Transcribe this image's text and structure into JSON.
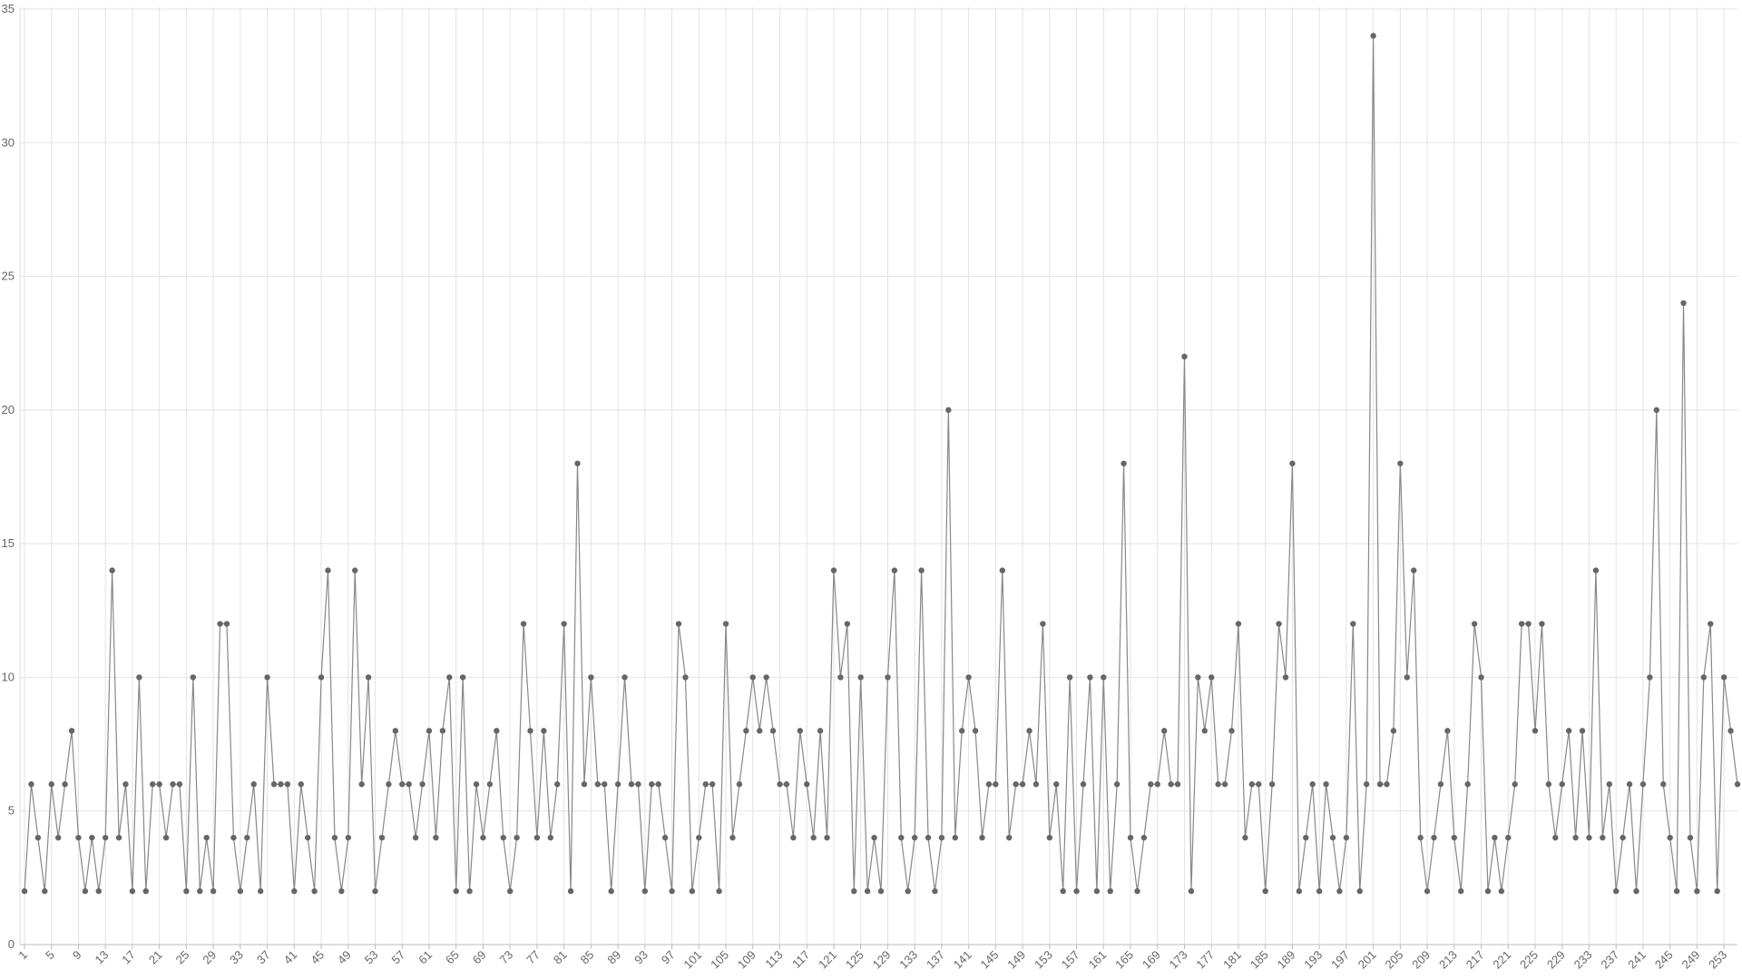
{
  "chart_data": {
    "type": "line",
    "x": [
      1,
      2,
      3,
      4,
      5,
      6,
      7,
      8,
      9,
      10,
      11,
      12,
      13,
      14,
      15,
      16,
      17,
      18,
      19,
      20,
      21,
      22,
      23,
      24,
      25,
      26,
      27,
      28,
      29,
      30,
      31,
      32,
      33,
      34,
      35,
      36,
      37,
      38,
      39,
      40,
      41,
      42,
      43,
      44,
      45,
      46,
      47,
      48,
      49,
      50,
      51,
      52,
      53,
      54,
      55,
      56,
      57,
      58,
      59,
      60,
      61,
      62,
      63,
      64,
      65,
      66,
      67,
      68,
      69,
      70,
      71,
      72,
      73,
      74,
      75,
      76,
      77,
      78,
      79,
      80,
      81,
      82,
      83,
      84,
      85,
      86,
      87,
      88,
      89,
      90,
      91,
      92,
      93,
      94,
      95,
      96,
      97,
      98,
      99,
      100,
      101,
      102,
      103,
      104,
      105,
      106,
      107,
      108,
      109,
      110,
      111,
      112,
      113,
      114,
      115,
      116,
      117,
      118,
      119,
      120,
      121,
      122,
      123,
      124,
      125,
      126,
      127,
      128,
      129,
      130,
      131,
      132,
      133,
      134,
      135,
      136,
      137,
      138,
      139,
      140,
      141,
      142,
      143,
      144,
      145,
      146,
      147,
      148,
      149,
      150,
      151,
      152,
      153,
      154,
      155,
      156,
      157,
      158,
      159,
      160,
      161,
      162,
      163,
      164,
      165,
      166,
      167,
      168,
      169,
      170,
      171,
      172,
      173,
      174,
      175,
      176,
      177,
      178,
      179,
      180,
      181,
      182,
      183,
      184,
      185,
      186,
      187,
      188,
      189,
      190,
      191,
      192,
      193,
      194,
      195,
      196,
      197,
      198,
      199,
      200,
      201,
      202,
      203,
      204,
      205,
      206,
      207,
      208,
      209,
      210,
      211,
      212,
      213,
      214,
      215,
      216,
      217,
      218,
      219,
      220,
      221,
      222,
      223,
      224,
      225,
      226,
      227,
      228,
      229,
      230,
      231,
      232,
      233,
      234,
      235,
      236,
      237,
      238,
      239,
      240,
      241,
      242,
      243,
      244,
      245,
      246,
      247,
      248,
      249,
      250,
      251,
      252,
      253,
      254,
      255
    ],
    "values": [
      2,
      6,
      4,
      2,
      6,
      4,
      6,
      8,
      4,
      2,
      4,
      2,
      4,
      14,
      4,
      6,
      2,
      10,
      2,
      6,
      6,
      4,
      6,
      6,
      2,
      10,
      2,
      4,
      2,
      12,
      12,
      4,
      2,
      4,
      6,
      2,
      10,
      6,
      6,
      6,
      2,
      6,
      4,
      2,
      10,
      14,
      4,
      2,
      4,
      14,
      6,
      10,
      2,
      4,
      6,
      8,
      6,
      6,
      4,
      6,
      8,
      4,
      8,
      10,
      2,
      10,
      2,
      6,
      4,
      6,
      8,
      4,
      2,
      4,
      12,
      8,
      4,
      8,
      4,
      6,
      12,
      2,
      18,
      6,
      10,
      6,
      6,
      2,
      6,
      10,
      6,
      6,
      2,
      6,
      6,
      4,
      2,
      12,
      10,
      2,
      4,
      6,
      6,
      2,
      12,
      4,
      6,
      8,
      10,
      8,
      10,
      8,
      6,
      6,
      4,
      8,
      6,
      4,
      8,
      4,
      14,
      10,
      12,
      2,
      10,
      2,
      4,
      2,
      10,
      14,
      4,
      2,
      4,
      14,
      4,
      2,
      4,
      20,
      4,
      8,
      10,
      8,
      4,
      6,
      6,
      14,
      4,
      6,
      6,
      8,
      6,
      12,
      4,
      6,
      2,
      10,
      2,
      6,
      10,
      2,
      10,
      2,
      6,
      18,
      4,
      2,
      4,
      6,
      6,
      8,
      6,
      6,
      22,
      2,
      10,
      8,
      10,
      6,
      6,
      8,
      12,
      4,
      6,
      6,
      2,
      6,
      12,
      10,
      18,
      2,
      4,
      6,
      2,
      6,
      4,
      2,
      4,
      12,
      2,
      6,
      34,
      6,
      6,
      8,
      18,
      10,
      14,
      4,
      2,
      4,
      6,
      8,
      4,
      2,
      6,
      12,
      10,
      2,
      4,
      2,
      4,
      6,
      12,
      12,
      8,
      12,
      6,
      4,
      6,
      8,
      4,
      8,
      4,
      14,
      4,
      6,
      2,
      4,
      6,
      2,
      6,
      10,
      20,
      6,
      4,
      2,
      24,
      4,
      2,
      10,
      12,
      2,
      10,
      8,
      6
    ],
    "color": "#888888",
    "marker_color": "#666666",
    "xlim": [
      1,
      255
    ],
    "xticks": [
      1,
      5,
      9,
      13,
      17,
      21,
      25,
      29,
      33,
      37,
      41,
      45,
      49,
      53,
      57,
      61,
      65,
      69,
      73,
      77,
      81,
      85,
      89,
      93,
      97,
      101,
      105,
      109,
      113,
      117,
      121,
      125,
      129,
      133,
      137,
      141,
      145,
      149,
      153,
      157,
      161,
      165,
      169,
      173,
      177,
      181,
      185,
      189,
      193,
      197,
      201,
      205,
      209,
      213,
      217,
      221,
      225,
      229,
      233,
      237,
      241,
      245,
      249,
      253
    ],
    "ylim": [
      0,
      35
    ],
    "yticks": [
      0,
      5,
      10,
      15,
      20,
      25,
      30,
      35
    ],
    "grid": true
  }
}
